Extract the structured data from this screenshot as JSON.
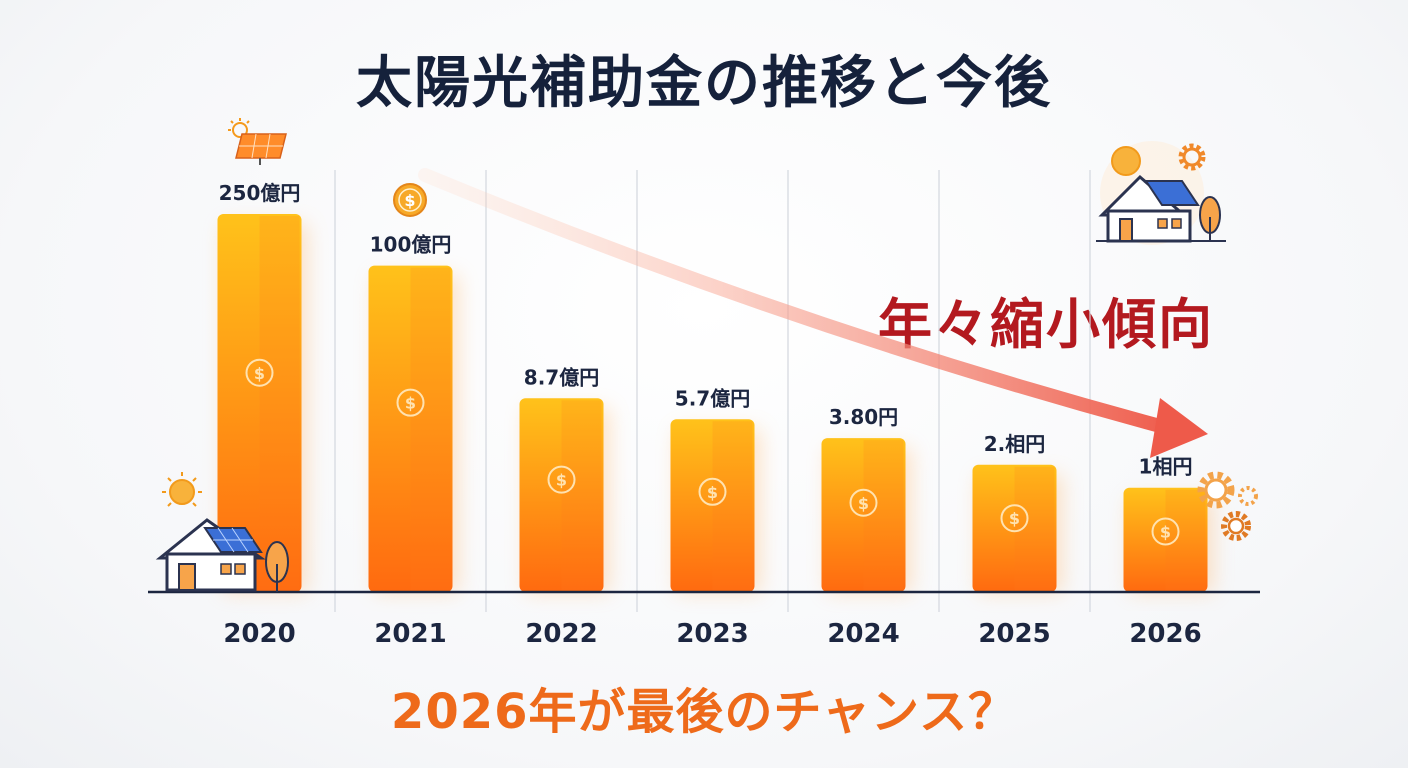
{
  "title": "太陽光補助金の推移と今後",
  "trend_text": "年々縮小傾向",
  "footer_text": "2026年が最後のチャンス？",
  "colors": {
    "bar_top": "#ffc21a",
    "bar_bottom": "#ff6a10",
    "title": "#15213b",
    "trend": "#b3191f",
    "footer": "#ee6a1a",
    "arrow": "#ee5a4a"
  },
  "chart_data": {
    "type": "bar",
    "categories": [
      "2020",
      "2021",
      "2022",
      "2023",
      "2024",
      "2025",
      "2026"
    ],
    "values": [
      250,
      100,
      8.7,
      5.7,
      3.8,
      2,
      1
    ],
    "value_labels": [
      "250億円",
      "100億円",
      "8.7億円",
      "5.7億円",
      "3.80円",
      "2.相円",
      "1相円"
    ],
    "title": "太陽光補助金の推移と今後",
    "xlabel": "",
    "ylabel": "",
    "grid": "vertical separators",
    "legend": "none",
    "annotation": "年々縮小傾向"
  },
  "icons": [
    "solar-panel-icon",
    "coin-icon",
    "house-solar-icon",
    "house-solar-gear-icon",
    "gear-icon",
    "dollar-hand-icon",
    "dollar-icon"
  ]
}
